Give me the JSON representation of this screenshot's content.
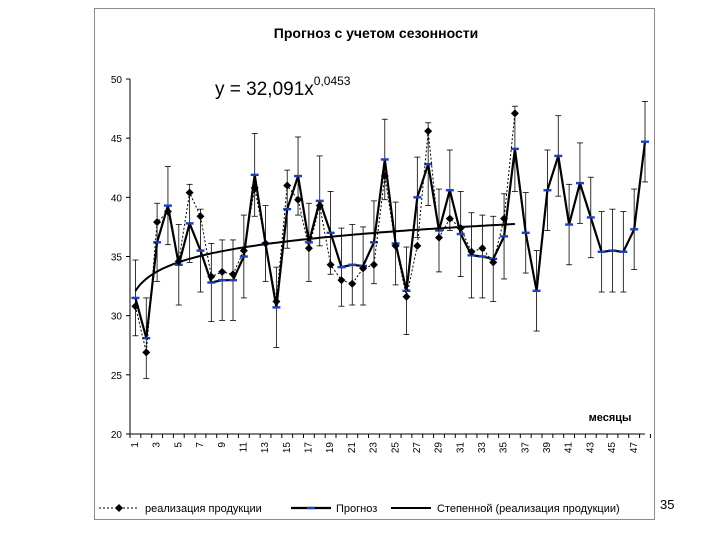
{
  "page_number": "35",
  "chart_data": {
    "type": "line",
    "title": "Прогноз с учетом сезонности",
    "equation": {
      "base": "y = 32,091x",
      "exponent": "0,0453"
    },
    "xlabel": "месяцы",
    "ylabel": "",
    "ylim": [
      20,
      50
    ],
    "yticks": [
      20,
      25,
      30,
      35,
      40,
      45,
      50
    ],
    "xlim": [
      1,
      48
    ],
    "xticks": [
      1,
      3,
      5,
      7,
      9,
      11,
      13,
      15,
      17,
      19,
      21,
      23,
      25,
      27,
      29,
      31,
      33,
      35,
      37,
      39,
      41,
      43,
      45,
      47
    ],
    "grid": false,
    "legend_position": "bottom",
    "legend": [
      "реализация продукции",
      "Прогноз",
      "Степенной (реализация продукции)"
    ],
    "colors": {
      "actual": "#000000",
      "forecast": "#000000",
      "forecast_marker": "#1f3fbf",
      "trend": "#000000"
    },
    "series": [
      {
        "name": "реализация продукции",
        "style": "dotted-diamond",
        "x": [
          1,
          2,
          3,
          4,
          5,
          6,
          7,
          8,
          9,
          10,
          11,
          12,
          13,
          14,
          15,
          16,
          17,
          18,
          19,
          20,
          21,
          22,
          23,
          24,
          25,
          26,
          27,
          28,
          29,
          30,
          31,
          32,
          33,
          34,
          35,
          36
        ],
        "values": [
          30.8,
          26.9,
          37.9,
          38.8,
          34.6,
          40.4,
          38.4,
          33.3,
          33.7,
          33.5,
          35.5,
          40.8,
          36.1,
          31.2,
          41.0,
          39.8,
          35.7,
          39.3,
          34.3,
          33.0,
          32.7,
          34.0,
          34.3,
          41.8,
          35.9,
          31.6,
          35.9,
          45.6,
          36.6,
          38.2,
          37.4,
          35.4,
          35.7,
          34.5,
          38.2,
          47.1
        ]
      },
      {
        "name": "Прогноз",
        "style": "solid-thick",
        "x": [
          1,
          2,
          3,
          4,
          5,
          6,
          7,
          8,
          9,
          10,
          11,
          12,
          13,
          14,
          15,
          16,
          17,
          18,
          19,
          20,
          21,
          22,
          23,
          24,
          25,
          26,
          27,
          28,
          29,
          30,
          31,
          32,
          33,
          34,
          35,
          36,
          37,
          38,
          39,
          40,
          41,
          42,
          43,
          44,
          45,
          46,
          47,
          48
        ],
        "values": [
          31.5,
          28.1,
          36.2,
          39.3,
          34.3,
          37.8,
          35.5,
          32.8,
          33.0,
          33.0,
          35.0,
          41.9,
          36.1,
          30.7,
          39.0,
          41.8,
          36.2,
          39.7,
          37.0,
          34.1,
          34.3,
          34.2,
          36.2,
          43.2,
          36.1,
          32.1,
          40.0,
          42.8,
          37.2,
          40.6,
          36.9,
          35.1,
          35.0,
          34.8,
          36.7,
          44.1,
          37.0,
          32.1,
          40.6,
          43.5,
          37.7,
          41.2,
          38.3,
          35.4,
          35.5,
          35.4,
          37.3,
          44.7
        ],
        "error": [
          3.2,
          3.4,
          3.3,
          3.3,
          3.4,
          3.3,
          3.5,
          3.3,
          3.4,
          3.4,
          3.5,
          3.5,
          3.2,
          3.4,
          3.3,
          3.3,
          3.3,
          3.8,
          3.5,
          3.3,
          3.4,
          3.3,
          3.5,
          3.4,
          3.5,
          3.7,
          3.4,
          3.5,
          3.5,
          3.4,
          3.6,
          3.6,
          3.5,
          3.6,
          3.6,
          3.6,
          3.4,
          3.4,
          3.4,
          3.4,
          3.4,
          3.4,
          3.4,
          3.4,
          3.5,
          3.4,
          3.4,
          3.4
        ]
      },
      {
        "name": "Степенной (реализация продукции)",
        "style": "solid-trend",
        "formula": {
          "a": 32.091,
          "b": 0.0453
        },
        "x_range": [
          1,
          36
        ]
      }
    ]
  }
}
